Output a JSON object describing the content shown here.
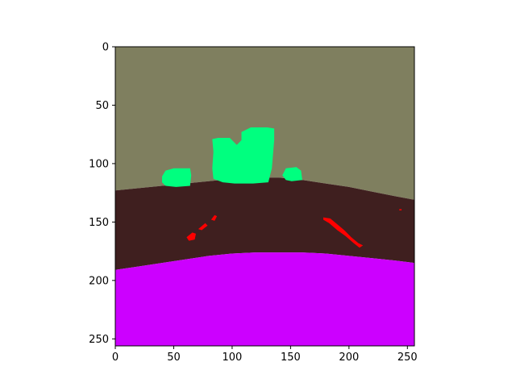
{
  "chart_data": {
    "type": "heatmap",
    "title": "",
    "xlabel": "",
    "ylabel": "",
    "xlim": [
      0,
      256
    ],
    "ylim": [
      256,
      0
    ],
    "xticks": [
      0,
      50,
      100,
      150,
      200,
      250
    ],
    "yticks": [
      0,
      50,
      100,
      150,
      200,
      250
    ],
    "image_size": [
      256,
      256
    ],
    "colors": {
      "sky": "#7f7f5f",
      "ground": "#3f1f1f",
      "lower": "#cc00ff",
      "foliage": "#00ff7f",
      "streak": "#ff0000"
    },
    "regions": [
      {
        "label": "sky",
        "polygon": [
          [
            0,
            0
          ],
          [
            256,
            0
          ],
          [
            256,
            131
          ],
          [
            240,
            128
          ],
          [
            220,
            124
          ],
          [
            200,
            120
          ],
          [
            180,
            117
          ],
          [
            160,
            114
          ],
          [
            140,
            112
          ],
          [
            120,
            112
          ],
          [
            100,
            113
          ],
          [
            80,
            115
          ],
          [
            60,
            117
          ],
          [
            40,
            119
          ],
          [
            20,
            121
          ],
          [
            0,
            123
          ]
        ]
      },
      {
        "label": "ground",
        "polygon": [
          [
            0,
            123
          ],
          [
            20,
            121
          ],
          [
            40,
            119
          ],
          [
            60,
            117
          ],
          [
            80,
            115
          ],
          [
            100,
            113
          ],
          [
            120,
            112
          ],
          [
            140,
            112
          ],
          [
            160,
            114
          ],
          [
            180,
            117
          ],
          [
            200,
            120
          ],
          [
            220,
            124
          ],
          [
            240,
            128
          ],
          [
            256,
            131
          ],
          [
            256,
            185
          ],
          [
            240,
            183
          ],
          [
            220,
            181
          ],
          [
            200,
            179
          ],
          [
            180,
            177
          ],
          [
            160,
            176
          ],
          [
            140,
            176
          ],
          [
            120,
            176
          ],
          [
            100,
            177
          ],
          [
            80,
            179
          ],
          [
            60,
            182
          ],
          [
            40,
            185
          ],
          [
            20,
            188
          ],
          [
            0,
            191
          ]
        ]
      },
      {
        "label": "lower",
        "polygon": [
          [
            0,
            191
          ],
          [
            20,
            188
          ],
          [
            40,
            185
          ],
          [
            60,
            182
          ],
          [
            80,
            179
          ],
          [
            100,
            177
          ],
          [
            120,
            176
          ],
          [
            140,
            176
          ],
          [
            160,
            176
          ],
          [
            180,
            177
          ],
          [
            200,
            179
          ],
          [
            220,
            181
          ],
          [
            240,
            183
          ],
          [
            256,
            185
          ],
          [
            256,
            256
          ],
          [
            0,
            256
          ]
        ]
      },
      {
        "label": "foliage",
        "polygon": [
          [
            40,
            111
          ],
          [
            43,
            106
          ],
          [
            50,
            104
          ],
          [
            64,
            104
          ],
          [
            65,
            110
          ],
          [
            64,
            119
          ],
          [
            52,
            120
          ],
          [
            43,
            119
          ],
          [
            40,
            116
          ]
        ]
      },
      {
        "label": "foliage",
        "polygon": [
          [
            83,
            79
          ],
          [
            88,
            78
          ],
          [
            98,
            78
          ],
          [
            104,
            84
          ],
          [
            108,
            80
          ],
          [
            108,
            73
          ],
          [
            116,
            69
          ],
          [
            130,
            69
          ],
          [
            136,
            70
          ],
          [
            136,
            80
          ],
          [
            134,
            104
          ],
          [
            131,
            116
          ],
          [
            118,
            117
          ],
          [
            102,
            117
          ],
          [
            92,
            116
          ],
          [
            84,
            113
          ],
          [
            83,
            104
          ],
          [
            84,
            90
          ]
        ]
      },
      {
        "label": "foliage",
        "polygon": [
          [
            143,
            110
          ],
          [
            146,
            104
          ],
          [
            155,
            103
          ],
          [
            159,
            106
          ],
          [
            160,
            114
          ],
          [
            151,
            115
          ],
          [
            146,
            114
          ]
        ]
      },
      {
        "label": "streak",
        "polygon": [
          [
            61,
            163
          ],
          [
            66,
            159
          ],
          [
            69,
            160
          ],
          [
            68,
            165
          ],
          [
            63,
            166
          ]
        ]
      },
      {
        "label": "streak",
        "polygon": [
          [
            71,
            156
          ],
          [
            77,
            151
          ],
          [
            79,
            153
          ],
          [
            74,
            157
          ]
        ]
      },
      {
        "label": "streak",
        "polygon": [
          [
            82,
            148
          ],
          [
            85,
            144
          ],
          [
            87,
            145
          ],
          [
            85,
            149
          ]
        ]
      },
      {
        "label": "streak",
        "polygon": [
          [
            178,
            146
          ],
          [
            184,
            147
          ],
          [
            190,
            152
          ],
          [
            196,
            157
          ],
          [
            202,
            163
          ],
          [
            208,
            168
          ],
          [
            212,
            170
          ],
          [
            209,
            172
          ],
          [
            204,
            168
          ],
          [
            197,
            162
          ],
          [
            190,
            157
          ],
          [
            183,
            151
          ],
          [
            178,
            148
          ]
        ]
      },
      {
        "label": "streak",
        "polygon": [
          [
            243,
            139
          ],
          [
            245,
            139
          ],
          [
            245,
            140
          ],
          [
            243,
            140
          ]
        ]
      }
    ]
  }
}
